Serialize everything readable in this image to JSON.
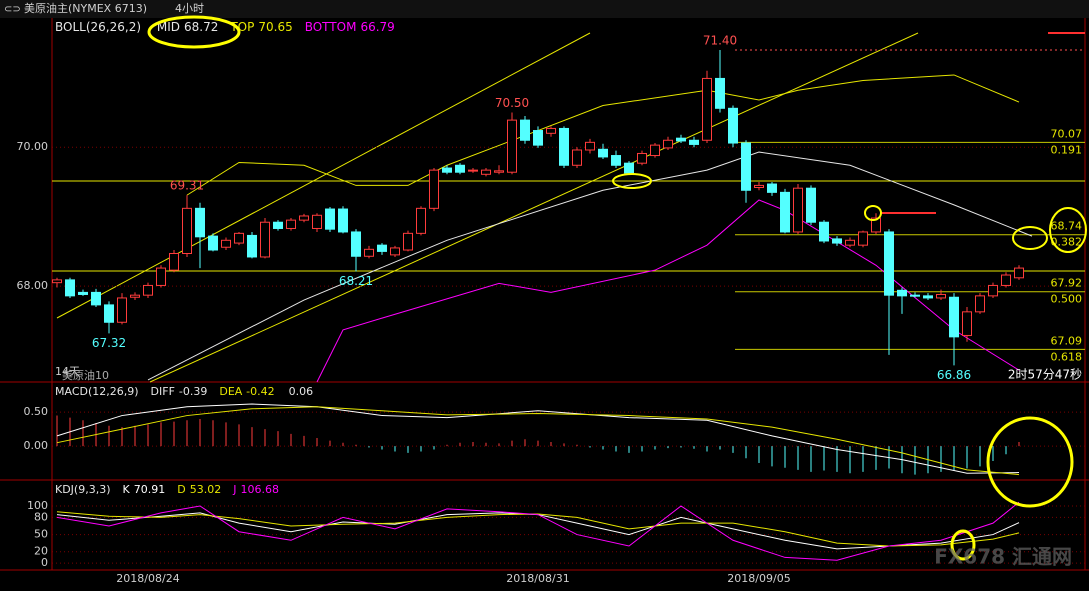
{
  "header": {
    "title": "美原油主(NYMEX 6713)",
    "period": "4小时",
    "watermark": "FX678 汇通网",
    "countdown": "2时57分47秒",
    "footer_left": "14天",
    "footer_name": "美原油10"
  },
  "chart_data": [
    {
      "type": "candlestick",
      "indicator": "BOLL(26,26,2)",
      "up_color": "#ff3c3c",
      "down_color": "#54ffff",
      "categories": [
        null,
        null,
        null,
        null,
        null,
        null,
        null,
        "2018/08/24",
        null,
        null,
        null,
        null,
        null,
        null,
        null,
        null,
        null,
        null,
        null,
        null,
        null,
        null,
        null,
        null,
        null,
        null,
        null,
        null,
        null,
        null,
        null,
        null,
        null,
        null,
        null,
        null,
        null,
        "2018/08/31",
        null,
        null,
        null,
        null,
        null,
        null,
        null,
        null,
        null,
        null,
        null,
        null,
        null,
        null,
        null,
        null,
        "2018/09/05",
        null,
        null,
        null,
        null,
        null,
        null,
        null,
        null,
        null,
        null,
        null,
        null,
        null,
        null,
        null,
        null,
        null,
        null,
        null,
        null
      ],
      "open": [
        68.05,
        68.09,
        67.91,
        67.91,
        67.73,
        67.48,
        67.84,
        67.87,
        68.01,
        68.23,
        68.47,
        69.12,
        68.72,
        68.56,
        68.62,
        68.73,
        68.42,
        68.92,
        68.83,
        68.95,
        68.83,
        69.11,
        69.11,
        68.78,
        68.43,
        68.59,
        68.45,
        68.52,
        68.76,
        69.12,
        69.7,
        69.74,
        69.66,
        69.61,
        69.64,
        69.64,
        70.39,
        70.24,
        70.2,
        70.27,
        69.74,
        69.96,
        69.97,
        69.88,
        69.77,
        69.77,
        69.88,
        69.99,
        70.13,
        70.1,
        70.1,
        70.99,
        70.56,
        70.06,
        69.42,
        69.47,
        69.35,
        68.78,
        69.41,
        68.92,
        68.68,
        68.59,
        68.59,
        68.78,
        68.78,
        67.94,
        67.87,
        67.86,
        67.83,
        67.84,
        67.29,
        67.63,
        67.86,
        68.01,
        68.12
      ],
      "high": [
        68.12,
        68.12,
        67.95,
        67.96,
        67.78,
        67.9,
        67.91,
        68.05,
        68.3,
        68.52,
        69.31,
        69.2,
        68.76,
        68.7,
        68.78,
        68.78,
        68.98,
        68.95,
        68.98,
        69.04,
        69.05,
        69.14,
        69.15,
        68.82,
        68.58,
        68.62,
        68.58,
        68.8,
        69.15,
        69.7,
        69.74,
        69.77,
        69.7,
        69.7,
        69.74,
        70.5,
        70.45,
        70.3,
        70.3,
        70.3,
        70.0,
        70.12,
        70.05,
        69.95,
        69.8,
        69.95,
        70.06,
        70.15,
        70.18,
        70.15,
        71.1,
        71.4,
        70.6,
        70.1,
        69.5,
        69.5,
        69.4,
        69.47,
        69.45,
        68.95,
        68.72,
        68.7,
        68.8,
        69.05,
        68.82,
        67.98,
        67.91,
        67.9,
        67.95,
        67.9,
        67.7,
        67.9,
        68.05,
        68.2,
        68.3
      ],
      "low": [
        67.98,
        67.83,
        67.86,
        67.7,
        67.32,
        67.45,
        67.8,
        67.83,
        67.98,
        68.2,
        68.42,
        68.26,
        68.5,
        68.52,
        68.59,
        68.4,
        68.4,
        68.8,
        68.8,
        68.92,
        68.78,
        68.78,
        68.76,
        68.21,
        68.4,
        68.45,
        68.42,
        68.5,
        68.73,
        69.08,
        69.61,
        69.61,
        69.63,
        69.58,
        69.61,
        69.61,
        70.05,
        69.99,
        70.15,
        69.7,
        69.7,
        69.91,
        69.83,
        69.7,
        69.6,
        69.74,
        69.85,
        69.96,
        70.06,
        70.0,
        70.06,
        70.5,
        70.0,
        69.2,
        69.38,
        69.3,
        68.76,
        68.75,
        68.88,
        68.62,
        68.58,
        68.56,
        68.56,
        68.75,
        67.01,
        67.6,
        67.84,
        67.8,
        67.8,
        66.86,
        67.2,
        67.6,
        67.83,
        67.98,
        68.09
      ],
      "close": [
        68.09,
        67.86,
        67.88,
        67.73,
        67.48,
        67.83,
        67.87,
        68.01,
        68.26,
        68.47,
        69.12,
        68.71,
        68.52,
        68.66,
        68.76,
        68.42,
        68.92,
        68.83,
        68.95,
        69.01,
        69.02,
        68.82,
        68.78,
        68.43,
        68.53,
        68.5,
        68.55,
        68.76,
        69.12,
        69.67,
        69.64,
        69.64,
        69.67,
        69.67,
        69.66,
        70.39,
        70.1,
        70.03,
        70.27,
        69.74,
        69.96,
        70.07,
        69.86,
        69.74,
        69.63,
        69.91,
        70.03,
        70.1,
        70.09,
        70.04,
        70.99,
        70.56,
        70.06,
        69.38,
        69.45,
        69.35,
        68.78,
        69.41,
        68.92,
        68.65,
        68.62,
        68.66,
        68.78,
        68.98,
        67.87,
        67.86,
        67.86,
        67.83,
        67.88,
        67.27,
        67.63,
        67.86,
        68.01,
        68.16,
        68.26
      ],
      "overlays": [
        {
          "name": "MID",
          "color": "#e6e6e6",
          "x": [
            7,
            19,
            30,
            42,
            50,
            54,
            61,
            69,
            75
          ],
          "values": [
            66.65,
            67.8,
            68.66,
            69.38,
            69.67,
            69.93,
            69.74,
            69.17,
            68.72
          ]
        },
        {
          "name": "TOP",
          "color": "#e6e600",
          "x": [
            10,
            14,
            19,
            23,
            27,
            30,
            37,
            42,
            50,
            54,
            57,
            62,
            69,
            74
          ],
          "values": [
            69.31,
            69.78,
            69.74,
            69.45,
            69.45,
            69.74,
            70.24,
            70.6,
            70.82,
            70.68,
            70.82,
            70.96,
            71.04,
            70.65
          ]
        },
        {
          "name": "BOTTOM",
          "color": "#ff00ff",
          "x": [
            20,
            22,
            25,
            34,
            38,
            46,
            50,
            54,
            56,
            63,
            69,
            74
          ],
          "values": [
            66.62,
            67.37,
            67.54,
            68.04,
            67.91,
            68.23,
            68.59,
            69.24,
            69.09,
            68.3,
            67.37,
            66.79
          ]
        }
      ],
      "levels": [
        {
          "value": 70.07,
          "ratio": {
            "value": 0.191,
            "label": "0.191"
          }
        },
        {
          "value": 68.74,
          "ratio": {
            "value": 0.382,
            "label": "0.382"
          }
        },
        {
          "value": 67.92,
          "ratio": {
            "value": 0.5,
            "label": "0.500"
          }
        },
        {
          "value": 67.09,
          "ratio": {
            "value": 0.618,
            "label": "0.618"
          }
        }
      ],
      "price_labels": [
        {
          "value": 69.31,
          "label": "69.31"
        },
        {
          "value": 70.5,
          "label": "70.50"
        },
        {
          "value": 71.4,
          "label": "71.40"
        },
        {
          "value": 68.21,
          "label": "68.21"
        },
        {
          "value": 67.32,
          "label": "67.32"
        },
        {
          "value": 66.86,
          "label": "66.86"
        }
      ],
      "ylim": [
        66.62,
        71.86
      ],
      "yticks": [
        {
          "value": 70,
          "label": "70.00"
        },
        {
          "value": 68,
          "label": "68.00"
        }
      ]
    },
    {
      "type": "macd",
      "title": "MACD(12,26,9)",
      "up_color": "#ff3c3c",
      "down_color": "#54ffff",
      "values": [
        0.45,
        0.42,
        0.38,
        0.34,
        0.3,
        0.28,
        0.3,
        0.32,
        0.35,
        0.36,
        0.38,
        0.4,
        0.38,
        0.35,
        0.32,
        0.28,
        0.25,
        0.22,
        0.18,
        0.15,
        0.12,
        0.08,
        0.05,
        0.02,
        -0.02,
        -0.05,
        -0.08,
        -0.1,
        -0.08,
        -0.05,
        0.02,
        0.05,
        0.06,
        0.05,
        0.04,
        0.08,
        0.1,
        0.08,
        0.06,
        0.04,
        0.02,
        -0.02,
        -0.05,
        -0.08,
        -0.1,
        -0.08,
        -0.05,
        -0.03,
        -0.02,
        -0.04,
        -0.08,
        -0.05,
        -0.1,
        -0.18,
        -0.25,
        -0.3,
        -0.32,
        -0.35,
        -0.38,
        -0.36,
        -0.38,
        -0.4,
        -0.38,
        -0.35,
        -0.33,
        -0.4,
        -0.42,
        -0.4,
        -0.38,
        -0.36,
        -0.33,
        -0.3,
        -0.22,
        -0.12,
        0.06
      ],
      "series": [
        {
          "name": "DIFF",
          "color": "#ffffff",
          "x": [
            0,
            5,
            10,
            15,
            20,
            25,
            30,
            37,
            44,
            50,
            55,
            60,
            65,
            70,
            74
          ],
          "values": [
            0.15,
            0.45,
            0.58,
            0.62,
            0.58,
            0.45,
            0.42,
            0.52,
            0.42,
            0.38,
            0.15,
            -0.05,
            -0.2,
            -0.4,
            -0.39
          ]
        },
        {
          "name": "DEA",
          "color": "#e6e600",
          "x": [
            0,
            5,
            10,
            15,
            20,
            25,
            30,
            37,
            44,
            50,
            55,
            60,
            65,
            70,
            74
          ],
          "values": [
            0.05,
            0.25,
            0.45,
            0.55,
            0.58,
            0.52,
            0.46,
            0.48,
            0.45,
            0.4,
            0.28,
            0.1,
            -0.1,
            -0.35,
            -0.42
          ]
        }
      ],
      "ylim": [
        -0.5,
        0.93
      ],
      "yticks": [
        {
          "value": 0.5,
          "label": "0.50"
        },
        {
          "value": 0,
          "label": "0.00"
        }
      ]
    },
    {
      "type": "kdj",
      "title": "KDJ(9,3,3)",
      "series": [
        {
          "name": "K",
          "color": "#ffffff",
          "x": [
            0,
            4,
            8,
            11,
            14,
            18,
            22,
            26,
            30,
            34,
            37,
            40,
            44,
            48,
            52,
            56,
            60,
            64,
            68,
            72,
            74
          ],
          "values": [
            85,
            75,
            82,
            88,
            70,
            55,
            72,
            68,
            85,
            88,
            85,
            70,
            50,
            80,
            60,
            40,
            25,
            30,
            35,
            50,
            70.91
          ]
        },
        {
          "name": "D",
          "color": "#e6e600",
          "x": [
            0,
            4,
            8,
            11,
            14,
            18,
            22,
            26,
            30,
            34,
            37,
            40,
            44,
            48,
            52,
            56,
            60,
            64,
            68,
            72,
            74
          ],
          "values": [
            90,
            82,
            80,
            85,
            78,
            65,
            68,
            70,
            80,
            85,
            86,
            80,
            60,
            70,
            70,
            55,
            35,
            30,
            32,
            42,
            53.02
          ]
        },
        {
          "name": "J",
          "color": "#ff00ff",
          "x": [
            0,
            4,
            8,
            11,
            14,
            18,
            22,
            26,
            30,
            34,
            37,
            40,
            44,
            48,
            52,
            56,
            60,
            64,
            68,
            72,
            74
          ],
          "values": [
            80,
            65,
            88,
            100,
            55,
            40,
            80,
            60,
            95,
            90,
            85,
            50,
            30,
            100,
            40,
            10,
            5,
            30,
            40,
            70,
            106.68
          ]
        }
      ],
      "ylim": [
        -12,
        142
      ],
      "yticks": [
        100,
        80,
        50,
        20,
        0
      ]
    }
  ]
}
